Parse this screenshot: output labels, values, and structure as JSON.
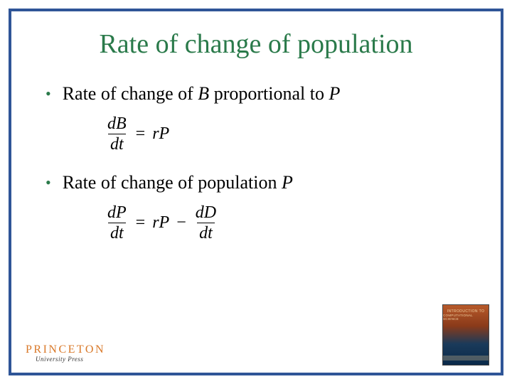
{
  "title": "Rate of change of population",
  "bullets": {
    "b1_pre": "Rate of change of ",
    "b1_var1": "B",
    "b1_mid": " proportional to ",
    "b1_var2": "P",
    "b2_pre": "Rate of change of population ",
    "b2_var": "P"
  },
  "eq1": {
    "num": "dB",
    "den": "dt",
    "rhs": "rP"
  },
  "eq2": {
    "lhs_num": "dP",
    "lhs_den": "dt",
    "mid": "rP",
    "rhs_num": "dD",
    "rhs_den": "dt"
  },
  "footer": {
    "princeton": "PRINCETON",
    "press": "University Press",
    "book_l1": "INTRODUCTION TO",
    "book_l2": "COMPUTATIONAL SCIENCE"
  },
  "style": {
    "title_color": "#2a7a4a",
    "border_color": "#2f5597",
    "princeton_color": "#d97828"
  }
}
